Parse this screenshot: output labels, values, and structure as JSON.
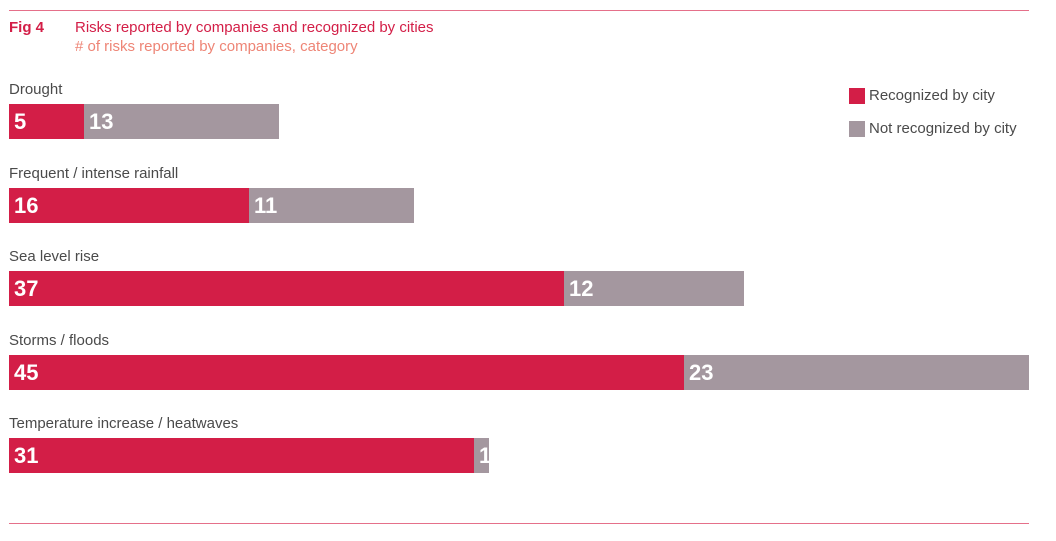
{
  "figure": {
    "label": "Fig 4",
    "title": "Risks reported by companies and recognized by cities",
    "subtitle": "# of risks reported by companies, category"
  },
  "colors": {
    "recognized": "#d31e47",
    "not_recognized": "#a4979f",
    "rule": "#e5708a",
    "subtitle": "#ee8576"
  },
  "chart_data": {
    "type": "bar",
    "orientation": "horizontal",
    "stacked": true,
    "title": "Risks reported by companies and recognized by cities",
    "subtitle": "# of risks reported by companies, category",
    "categories": [
      "Drought",
      "Frequent / intense rainfall",
      "Sea level rise",
      "Storms / floods",
      "Temperature increase / heatwaves"
    ],
    "series": [
      {
        "name": "Recognized by city",
        "values": [
          5,
          16,
          37,
          45,
          31
        ]
      },
      {
        "name": "Not recognized by city",
        "values": [
          13,
          11,
          12,
          23,
          1
        ]
      }
    ],
    "xlim": [
      0,
      68
    ],
    "grid": false,
    "legend_position": "top-right"
  }
}
